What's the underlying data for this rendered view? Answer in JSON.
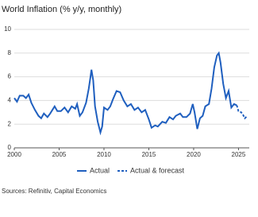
{
  "chart_data": {
    "type": "line",
    "title": "World Inflation (% y/y, monthly)",
    "source": "Sources: Refinitiv, Capital Economics",
    "xlim": [
      2000,
      2026.2
    ],
    "xticks": [
      2000,
      2005,
      2010,
      2015,
      2020,
      2025
    ],
    "ylim": [
      0,
      10
    ],
    "yticks": [
      0,
      2,
      4,
      6,
      8,
      10
    ],
    "grid": true,
    "legend": "bottom",
    "series": [
      {
        "name": "Actual",
        "color": "#1f5fbf",
        "dash": false,
        "x": [
          2000,
          2000.3,
          2000.6,
          2001,
          2001.3,
          2001.6,
          2001.9,
          2002.3,
          2002.7,
          2003,
          2003.3,
          2003.7,
          2004,
          2004.5,
          2004.8,
          2005.2,
          2005.6,
          2006,
          2006.4,
          2006.8,
          2007,
          2007.3,
          2007.6,
          2008,
          2008.3,
          2008.5,
          2008.6,
          2008.8,
          2009,
          2009.3,
          2009.6,
          2009.8,
          2010,
          2010.4,
          2010.7,
          2011,
          2011.4,
          2011.8,
          2012.2,
          2012.6,
          2013,
          2013.4,
          2013.8,
          2014.2,
          2014.6,
          2015,
          2015.3,
          2015.7,
          2016,
          2016.5,
          2016.9,
          2017.3,
          2017.7,
          2018,
          2018.5,
          2018.8,
          2019.2,
          2019.6,
          2019.9,
          2020.1,
          2020.4,
          2020.7,
          2021,
          2021.3,
          2021.7,
          2022,
          2022.3,
          2022.6,
          2022.8,
          2023,
          2023.3,
          2023.6,
          2023.9,
          2024.2,
          2024.5,
          2024.8
        ],
        "values": [
          4.2,
          3.9,
          4.4,
          4.4,
          4.2,
          4.5,
          3.8,
          3.2,
          2.7,
          2.5,
          2.9,
          2.6,
          2.9,
          3.5,
          3.1,
          3.1,
          3.4,
          3.0,
          3.5,
          3.3,
          3.7,
          2.7,
          3.0,
          3.8,
          5.0,
          6.0,
          6.6,
          5.7,
          3.5,
          2.2,
          1.3,
          1.8,
          3.4,
          3.2,
          3.5,
          4.1,
          4.8,
          4.7,
          4.0,
          3.5,
          3.7,
          3.2,
          3.4,
          3.0,
          3.2,
          2.4,
          1.7,
          1.9,
          1.8,
          2.2,
          2.1,
          2.6,
          2.4,
          2.7,
          2.9,
          2.6,
          2.6,
          2.9,
          3.7,
          3.0,
          1.6,
          2.5,
          2.7,
          3.5,
          3.7,
          5.0,
          6.8,
          7.8,
          8.0,
          7.2,
          5.4,
          4.2,
          4.8,
          3.4,
          3.7,
          3.6
        ]
      },
      {
        "name": "Actual & forecast",
        "color": "#1f5fbf",
        "dash": true,
        "x": [
          2024.8,
          2025,
          2025.3,
          2025.5,
          2025.7,
          2026
        ],
        "values": [
          3.6,
          3.1,
          3.0,
          2.8,
          2.5,
          2.7
        ]
      }
    ]
  }
}
